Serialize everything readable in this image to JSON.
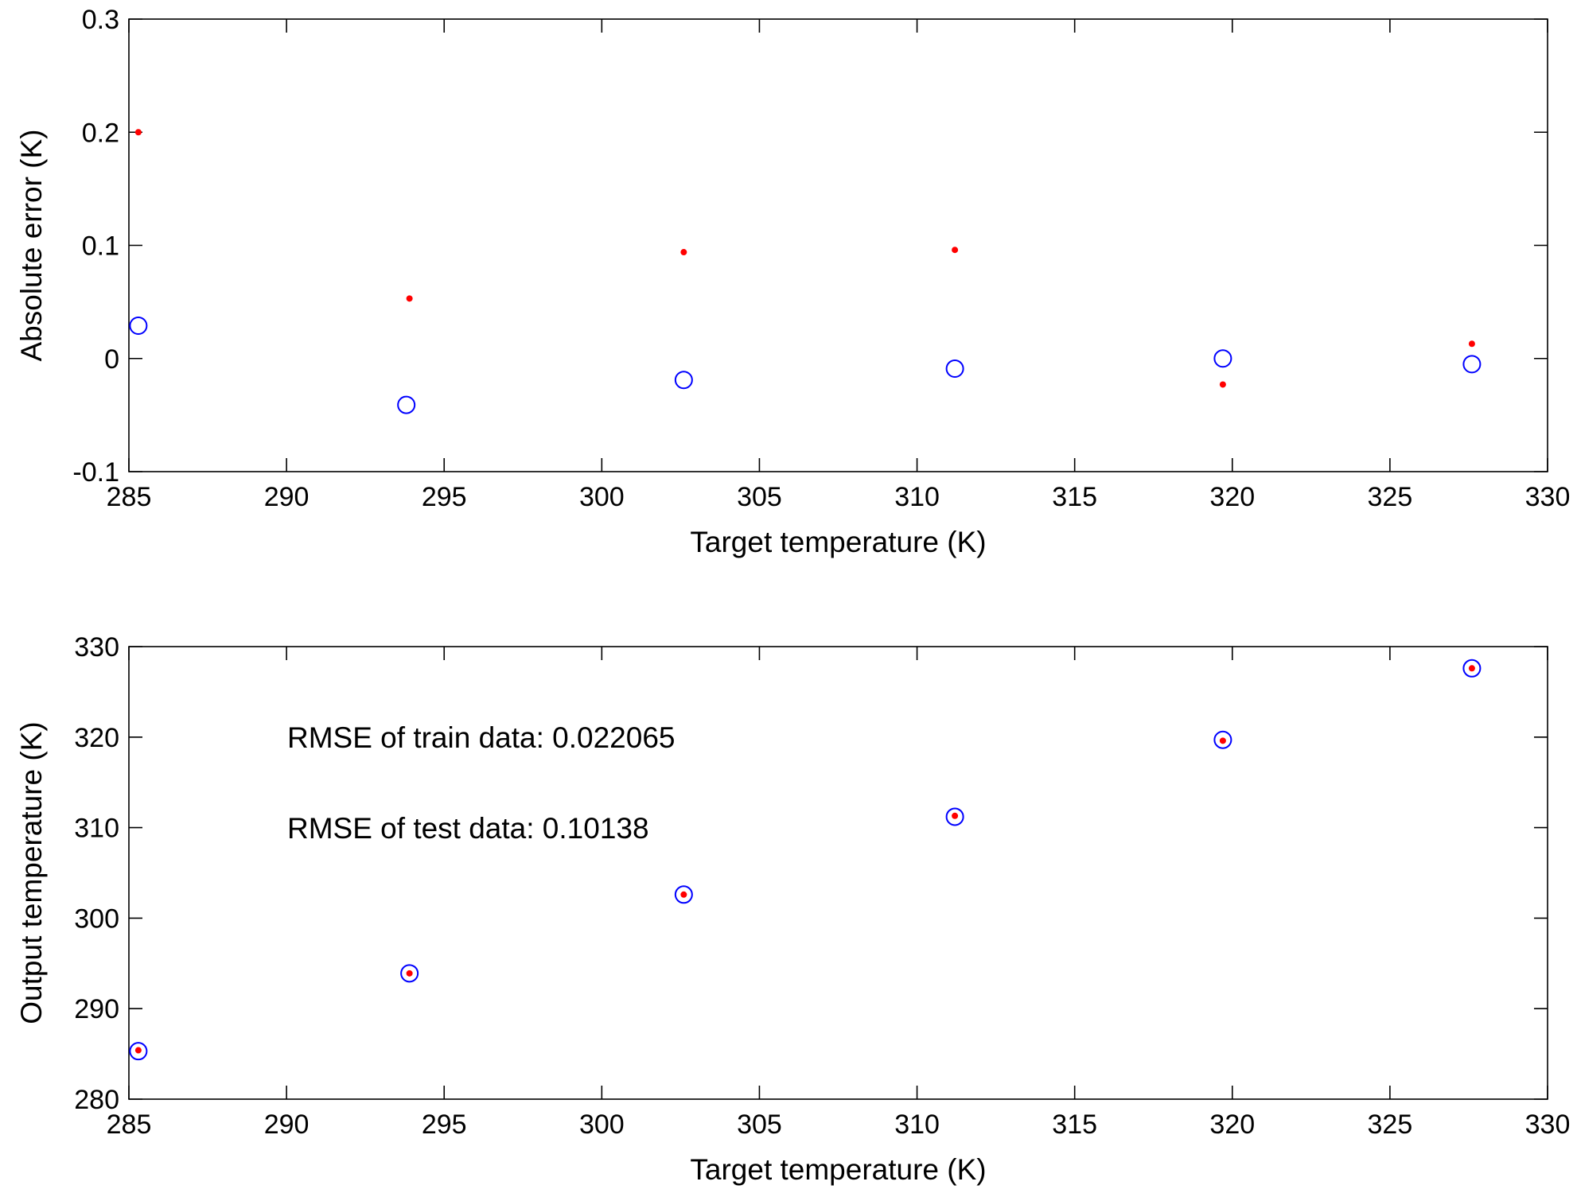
{
  "chart_data": [
    {
      "type": "scatter",
      "xlabel": "Target temperature (K)",
      "ylabel": "Absolute error (K)",
      "xlim": [
        285,
        330
      ],
      "ylim": [
        -0.1,
        0.3
      ],
      "xticks": [
        285,
        290,
        295,
        300,
        305,
        310,
        315,
        320,
        325,
        330
      ],
      "yticks": [
        -0.1,
        0,
        0.1,
        0.2,
        0.3
      ],
      "xtick_labels": [
        "285",
        "290",
        "295",
        "300",
        "305",
        "310",
        "315",
        "320",
        "325",
        "330"
      ],
      "ytick_labels": [
        "-0.1",
        "0",
        "0.1",
        "0.2",
        "0.3"
      ],
      "grid": false,
      "series": [
        {
          "marker": "circle-open",
          "color": "#0000ff",
          "x": [
            285.3,
            293.8,
            302.6,
            311.2,
            319.7,
            327.6
          ],
          "y": [
            0.029,
            -0.041,
            -0.019,
            -0.009,
            0.0,
            -0.005
          ]
        },
        {
          "marker": "dot",
          "color": "#ff0000",
          "x": [
            285.3,
            293.9,
            302.6,
            311.2,
            319.7,
            327.6
          ],
          "y": [
            0.2,
            0.053,
            0.094,
            0.096,
            -0.023,
            0.013
          ]
        }
      ]
    },
    {
      "type": "scatter",
      "xlabel": "Target temperature (K)",
      "ylabel": "Output temperature (K)",
      "xlim": [
        285,
        330
      ],
      "ylim": [
        280,
        330
      ],
      "xticks": [
        285,
        290,
        295,
        300,
        305,
        310,
        315,
        320,
        325,
        330
      ],
      "yticks": [
        280,
        290,
        300,
        310,
        320,
        330
      ],
      "xtick_labels": [
        "285",
        "290",
        "295",
        "300",
        "305",
        "310",
        "315",
        "320",
        "325",
        "330"
      ],
      "ytick_labels": [
        "280",
        "290",
        "300",
        "310",
        "320",
        "330"
      ],
      "grid": false,
      "annotations": [
        "RMSE of train data: 0.022065",
        "RMSE of test data: 0.10138"
      ],
      "series": [
        {
          "marker": "circle-open",
          "color": "#0000ff",
          "x": [
            285.3,
            293.9,
            302.6,
            311.2,
            319.7,
            327.6
          ],
          "y": [
            285.3,
            293.9,
            302.6,
            311.2,
            319.7,
            327.6
          ]
        },
        {
          "marker": "dot",
          "color": "#ff0000",
          "x": [
            285.3,
            293.9,
            302.6,
            311.2,
            319.7,
            327.6
          ],
          "y": [
            285.4,
            293.9,
            302.6,
            311.3,
            319.6,
            327.6
          ]
        }
      ]
    }
  ]
}
